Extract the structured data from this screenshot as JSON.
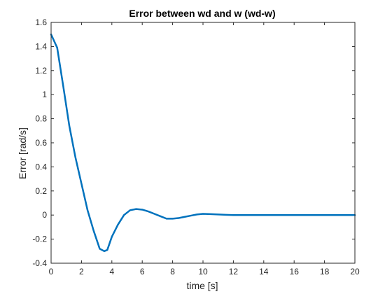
{
  "chart_data": {
    "type": "line",
    "title": "Error between wd and w (wd-w)",
    "xlabel": "time [s]",
    "ylabel": "Error [rad/s]",
    "xlim": [
      0,
      20
    ],
    "ylim": [
      -0.4,
      1.6
    ],
    "xticks": [
      0,
      2,
      4,
      6,
      8,
      10,
      12,
      14,
      16,
      18,
      20
    ],
    "yticks": [
      -0.4,
      -0.2,
      0,
      0.2,
      0.4,
      0.6,
      0.8,
      1,
      1.2,
      1.4,
      1.6
    ],
    "grid": false,
    "legend": "none",
    "line_color": "#0072BD",
    "series": [
      {
        "x": [
          0,
          0.4,
          0.8,
          1.2,
          1.6,
          2.0,
          2.4,
          2.8,
          3.2,
          3.5,
          3.7,
          4.0,
          4.4,
          4.8,
          5.2,
          5.6,
          6.0,
          6.4,
          6.8,
          7.2,
          7.6,
          8.0,
          8.4,
          8.8,
          9.2,
          9.6,
          10.0,
          10.5,
          11.0,
          11.5,
          12.0,
          13.0,
          14.0,
          16.0,
          18.0,
          20.0
        ],
        "y": [
          1.5,
          1.39,
          1.07,
          0.74,
          0.48,
          0.26,
          0.04,
          -0.13,
          -0.28,
          -0.3,
          -0.29,
          -0.18,
          -0.08,
          0.0,
          0.04,
          0.05,
          0.045,
          0.03,
          0.01,
          -0.01,
          -0.03,
          -0.03,
          -0.025,
          -0.015,
          -0.005,
          0.005,
          0.01,
          0.008,
          0.005,
          0.002,
          0.0,
          0.0,
          0.0,
          0.0,
          0.0,
          0.0
        ]
      }
    ]
  }
}
